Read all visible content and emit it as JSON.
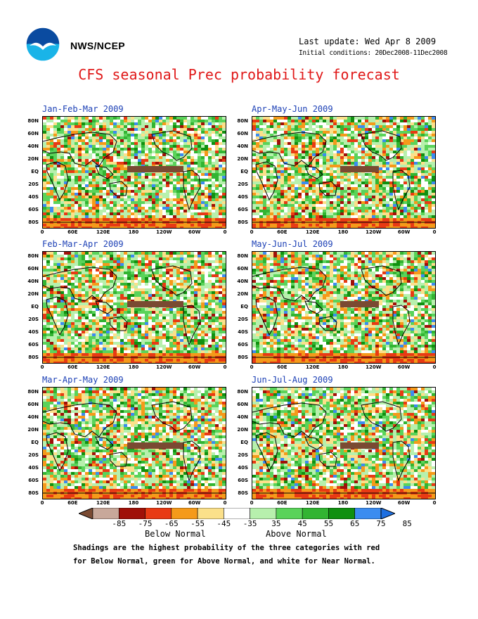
{
  "header": {
    "org": "NWS/NCEP",
    "last_update": "Last update: Wed Apr 8 2009",
    "initial_conditions": "Initial conditions: 20Dec2008-11Dec2008",
    "title": "CFS seasonal Prec probability forecast"
  },
  "logo": {
    "icon": "noaa-logo-icon",
    "colors": {
      "circle": "#0a4ba0",
      "gull": "#ffffff",
      "lower": "#19b4e8"
    }
  },
  "panels": [
    {
      "title": "Jan-Feb-Mar 2009"
    },
    {
      "title": "Apr-May-Jun 2009"
    },
    {
      "title": "Feb-Mar-Apr 2009"
    },
    {
      "title": "May-Jun-Jul 2009"
    },
    {
      "title": "Mar-Apr-May 2009"
    },
    {
      "title": "Jun-Jul-Aug 2009"
    }
  ],
  "axes": {
    "lat_labels": [
      "80N",
      "60N",
      "40N",
      "20N",
      "EQ",
      "20S",
      "40S",
      "60S",
      "80S"
    ],
    "lon_labels": [
      "0",
      "60E",
      "120E",
      "180",
      "120W",
      "60W",
      "0"
    ]
  },
  "colorbar": {
    "tick_labels": [
      "-85",
      "-75",
      "-65",
      "-55",
      "-45",
      "-35",
      "35",
      "45",
      "55",
      "65",
      "75",
      "85"
    ],
    "below_label": "Below Normal",
    "above_label": "Above Normal",
    "colors": [
      "#7a4a32",
      "#c8a89a",
      "#a01008",
      "#e83a14",
      "#f59a1a",
      "#fbe08a",
      "#ffffff",
      "#b7f0ad",
      "#5ad35a",
      "#32b432",
      "#109010",
      "#3c8cf0",
      "#1e6fe0"
    ]
  },
  "caption": [
    "Shadings are the highest probability of the three categories with red",
    "for Below Normal, green for Above Normal, and white for Near Normal."
  ]
}
